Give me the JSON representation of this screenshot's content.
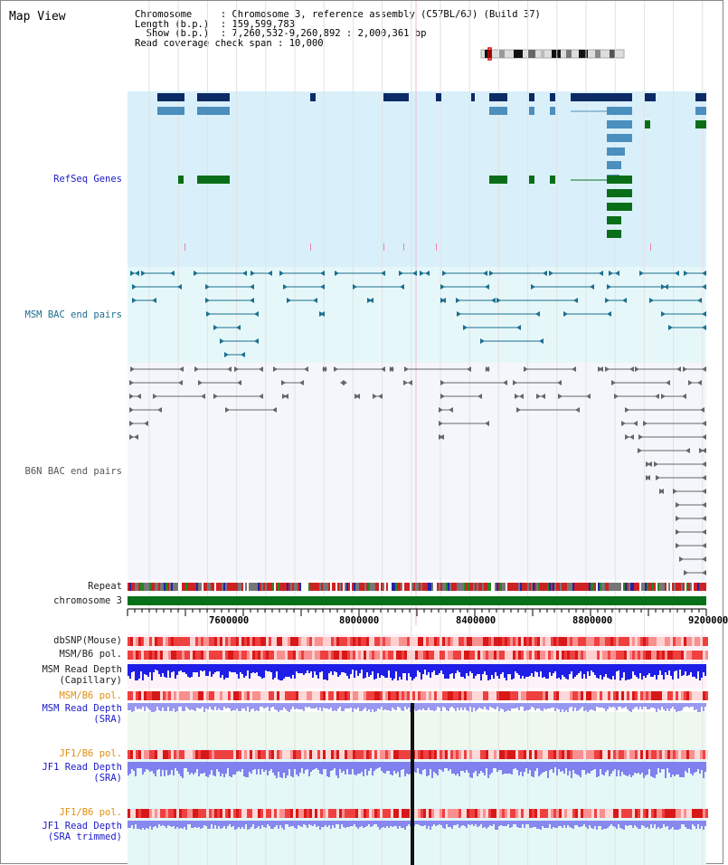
{
  "title": "Map View",
  "info": {
    "chromosome_key": "Chromosome",
    "chromosome_val": "Chromosome 3, reference assembly (C57BL/6J) (Build 37)",
    "length_key": "Length (b.p.)",
    "length_val": "159,599,783",
    "show_key": "Show (b.p.)",
    "show_val": "7,260,532-9,260,892 : 2,000,361 bp",
    "coverage_key": "Read coverage check span",
    "coverage_val": "10,000"
  },
  "tracks": {
    "refseq": "RefSeq Genes",
    "msm_bac": "MSM BAC end pairs",
    "b6n_bac": "B6N BAC end pairs",
    "repeat": "Repeat",
    "chromosome": "chromosome 3",
    "dbsnp": "dbSNP(Mouse)",
    "msm_b6_pol": "MSM/B6 pol.",
    "msm_depth_cap_1": "MSM Read Depth",
    "msm_depth_cap_2": "(Capillary)",
    "msm_b6_pol_2": "MSM/B6 pol.",
    "msm_depth_sra_1": "MSM Read Depth",
    "msm_depth_sra_2": "(SRA)",
    "jf1_b6_pol": "JF1/B6 pol.",
    "jf1_depth_sra_1": "JF1 Read Depth",
    "jf1_depth_sra_2": "(SRA)",
    "jf1_b6_pol_2": "JF1/B6 pol.",
    "jf1_depth_trim_1": "JF1 Read Depth",
    "jf1_depth_trim_2": "(SRA trimmed)"
  },
  "axis": {
    "ticks": [
      "7600000",
      "8000000",
      "8400000",
      "8800000",
      "9200000"
    ]
  },
  "colors": {
    "refseq_bg": "#d9f0fa",
    "msm_bac_bg": "#e6f7f9",
    "b6n_bac_bg": "#f4f6fb",
    "gene_dark": "#0b2a66",
    "gene_mid": "#4b8fbf",
    "gene_green": "#0a6e18",
    "msm_bac": "#1b6f8f",
    "b6n_bac": "#666666",
    "chromosome": "#087018",
    "label_blue": "#1a1acc",
    "label_orange": "#e09010",
    "label_dark": "#222222"
  }
}
